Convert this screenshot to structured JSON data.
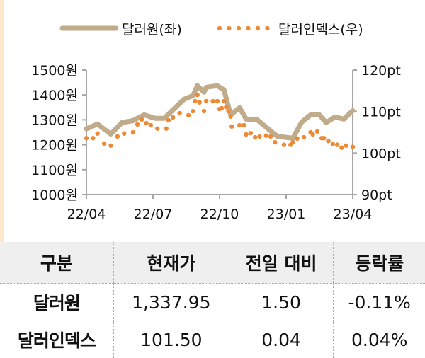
{
  "chart_data": {
    "type": "line",
    "legend_position": "top",
    "x_unit": "months since 22/04",
    "x_ticks": [
      "22/04",
      "22/07",
      "22/10",
      "23/01",
      "23/04"
    ],
    "x_tick_values": [
      0,
      3,
      6,
      9,
      12
    ],
    "y_left": {
      "ticks": [
        "1500원",
        "1400원",
        "1300원",
        "1200원",
        "1100원",
        "1000원"
      ],
      "tick_values": [
        1500,
        1400,
        1300,
        1200,
        1100,
        1000
      ],
      "range": [
        1000,
        1500
      ]
    },
    "y_right": {
      "ticks": [
        "120pt",
        "110pt",
        "100pt",
        "90pt"
      ],
      "tick_values": [
        120,
        110,
        100,
        90
      ],
      "range": [
        90,
        120
      ]
    },
    "series": [
      {
        "name": "달러원(좌)",
        "axis": "left",
        "style": "line",
        "color": "#c0ab8b",
        "x": [
          0,
          0.5,
          1.1,
          1.6,
          2.1,
          2.6,
          3.1,
          3.5,
          3.9,
          4.4,
          4.8,
          5.0,
          5.3,
          5.4,
          5.9,
          6.2,
          6.5,
          6.9,
          7.2,
          7.7,
          8.2,
          8.6,
          9.3,
          9.7,
          10.1,
          10.5,
          10.8,
          11.2,
          11.6,
          12
        ],
        "y": [
          1264,
          1283,
          1243,
          1289,
          1297,
          1320,
          1306,
          1306,
          1340,
          1383,
          1397,
          1437,
          1411,
          1431,
          1437,
          1420,
          1320,
          1349,
          1303,
          1300,
          1263,
          1234,
          1226,
          1291,
          1320,
          1320,
          1289,
          1311,
          1303,
          1337
        ]
      },
      {
        "name": "달러인덱스(우)",
        "axis": "right",
        "style": "dots",
        "color": "#ed8a35",
        "x": [
          0,
          0.3,
          0.5,
          0.8,
          1.1,
          1.4,
          1.7,
          2.1,
          2.3,
          2.5,
          2.7,
          2.9,
          3.2,
          3.6,
          3.7,
          3.9,
          4.2,
          4.6,
          4.8,
          4.9,
          5.0,
          5.1,
          5.3,
          5.4,
          5.7,
          5.9,
          6.0,
          6.1,
          6.2,
          6.3,
          6.4,
          6.5,
          6.55,
          6.9,
          7.1,
          7.2,
          7.4,
          7.6,
          7.8,
          8.1,
          8.3,
          8.5,
          8.9,
          9.2,
          9.3,
          9.5,
          9.8,
          10.1,
          10.2,
          10.4,
          10.6,
          10.7,
          10.9,
          11.1,
          11.3,
          11.5,
          11.7,
          12
        ],
        "y": [
          103.6,
          103.6,
          104.7,
          102.3,
          101.8,
          104.0,
          104.7,
          105.0,
          106.9,
          108.1,
          107.2,
          106.7,
          105.9,
          105.9,
          107.9,
          108.6,
          109.6,
          109.1,
          110.1,
          112.5,
          114.0,
          112.2,
          110.1,
          112.5,
          112.5,
          112.5,
          110.6,
          110.8,
          112.5,
          111.1,
          110.1,
          108.8,
          106.4,
          106.7,
          106.7,
          104.5,
          104.8,
          103.8,
          104.0,
          104.2,
          104.0,
          102.6,
          102.0,
          102.0,
          102.6,
          103.5,
          103.8,
          105.0,
          104.5,
          105.2,
          103.6,
          103.6,
          102.9,
          102.2,
          102.0,
          101.3,
          101.8,
          101.5
        ]
      }
    ]
  },
  "table": {
    "headers": [
      "구분",
      "현재가",
      "전일 대비",
      "등락률"
    ],
    "rows": [
      [
        "달러원",
        "1,337.95",
        "1.50",
        "-0.11%"
      ],
      [
        "달러인덱스",
        "101.50",
        "0.04",
        "0.04%"
      ]
    ]
  }
}
